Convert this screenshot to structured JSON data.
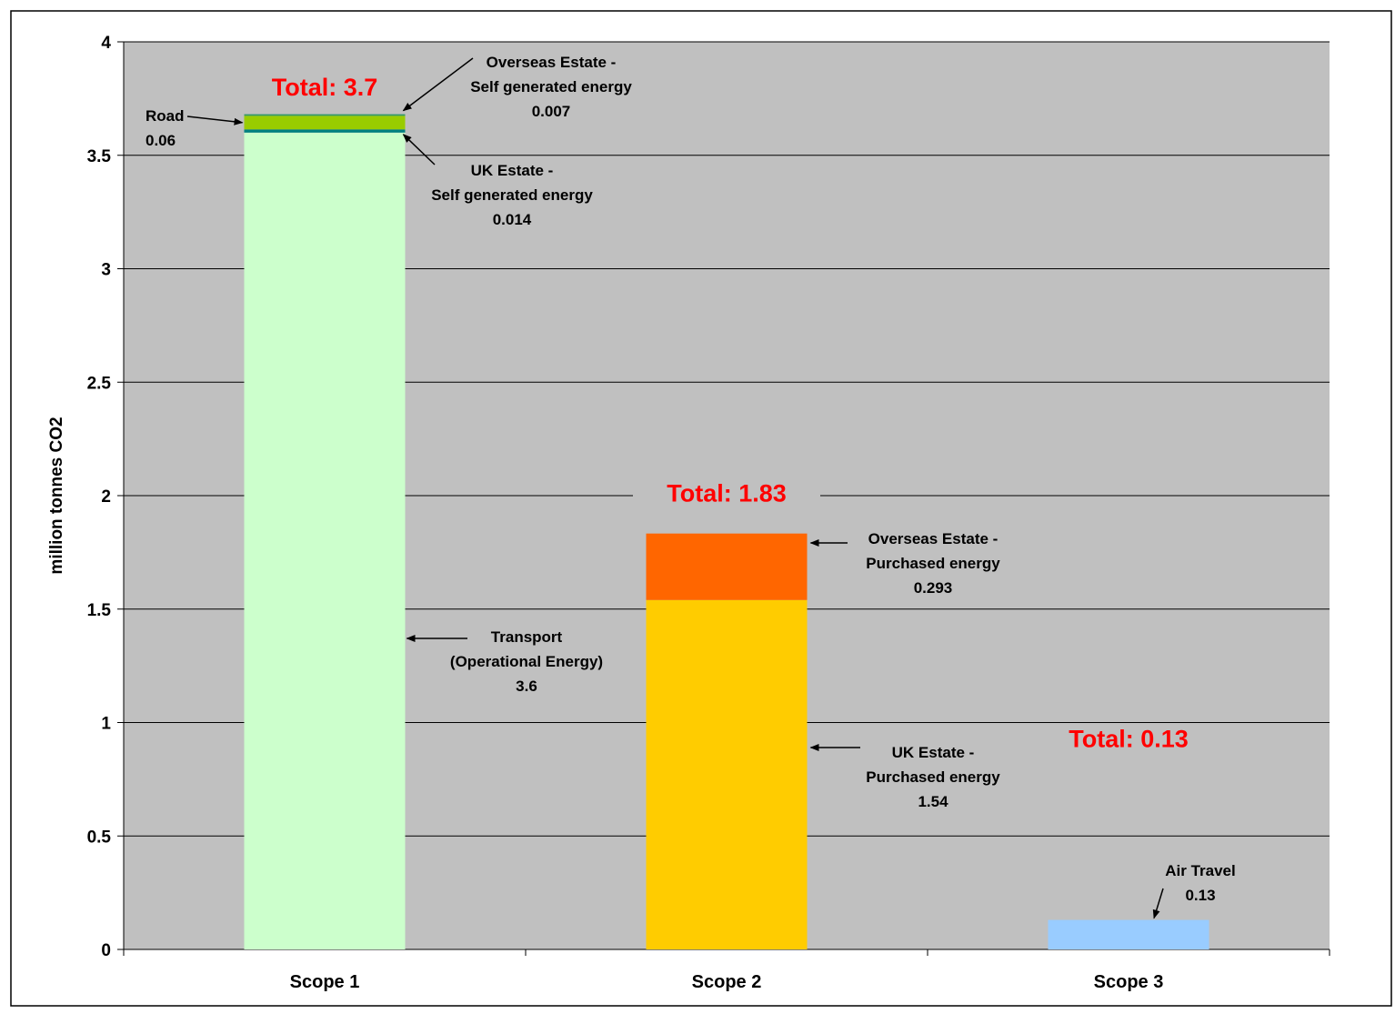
{
  "chart_data": {
    "type": "bar",
    "stacked": true,
    "ylabel": "million tonnes CO2",
    "xlabel": "",
    "ylim": [
      0,
      4
    ],
    "yticks": [
      {
        "value": 0,
        "label": "0"
      },
      {
        "value": 0.5,
        "label": "0.5"
      },
      {
        "value": 1,
        "label": "1"
      },
      {
        "value": 1.5,
        "label": "1.5"
      },
      {
        "value": 2,
        "label": "2"
      },
      {
        "value": 2.5,
        "label": "2.5"
      },
      {
        "value": 3,
        "label": "3"
      },
      {
        "value": 3.5,
        "label": "3.5"
      },
      {
        "value": 4,
        "label": "4"
      }
    ],
    "grid": true,
    "plot_background": "#c0c0c0",
    "categories": [
      "Scope 1",
      "Scope 2",
      "Scope 3"
    ],
    "stacks": [
      {
        "category": "Scope 1",
        "total_label": "Total: 3.7",
        "segments": [
          {
            "key": "transport",
            "value": 3.6,
            "color": "#ccffcc"
          },
          {
            "key": "uk_self",
            "value": 0.014,
            "color": "#008080"
          },
          {
            "key": "road",
            "value": 0.06,
            "color": "#99cc00"
          },
          {
            "key": "overseas_self",
            "value": 0.007,
            "color": "#339966"
          }
        ]
      },
      {
        "category": "Scope 2",
        "total_label": "Total: 1.83",
        "segments": [
          {
            "key": "uk_purchased",
            "value": 1.54,
            "color": "#ffcc00"
          },
          {
            "key": "overseas_purchased",
            "value": 0.293,
            "color": "#ff6600"
          }
        ]
      },
      {
        "category": "Scope 3",
        "total_label": "Total: 0.13",
        "segments": [
          {
            "key": "air_travel",
            "value": 0.13,
            "color": "#99ccff"
          }
        ]
      }
    ],
    "annotations": {
      "road": [
        "Road",
        "0.06"
      ],
      "overseas_self": [
        "Overseas Estate -",
        "Self generated energy",
        "0.007"
      ],
      "uk_self": [
        "UK Estate -",
        "Self generated energy",
        "0.014"
      ],
      "transport": [
        "Transport",
        "(Operational Energy)",
        "3.6"
      ],
      "overseas_purchased": [
        "Overseas Estate -",
        "Purchased energy",
        "0.293"
      ],
      "uk_purchased": [
        "UK Estate -",
        "Purchased energy",
        "1.54"
      ],
      "air_travel": [
        "Air Travel",
        "0.13"
      ]
    },
    "total_color": "#ff0000"
  }
}
